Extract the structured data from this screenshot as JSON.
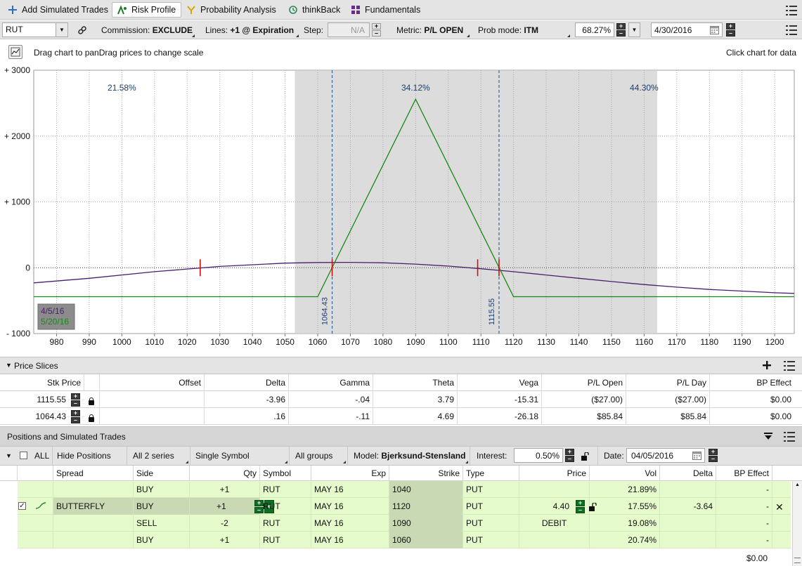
{
  "tabs": [
    {
      "label": "Add Simulated Trades",
      "icon": "plus-icon",
      "active": false
    },
    {
      "label": "Risk Profile",
      "icon": "risk-profile-icon",
      "active": true
    },
    {
      "label": "Probability Analysis",
      "icon": "probability-icon",
      "active": false
    },
    {
      "label": "thinkBack",
      "icon": "history-icon",
      "active": false
    },
    {
      "label": "Fundamentals",
      "icon": "fundamentals-icon",
      "active": false
    }
  ],
  "toolbar": {
    "symbol": "RUT",
    "commission_label": "Commission:",
    "commission_value": "EXCLUDE",
    "lines_label": "Lines:",
    "lines_value": "+1 @ Expiration",
    "step_label": "Step:",
    "step_value": "N/A",
    "metric_label": "Metric:",
    "metric_value": "P/L OPEN",
    "prob_label": "Prob mode:",
    "prob_value": "ITM",
    "percent_value": "68.27%",
    "date_value": "4/30/2016"
  },
  "chart_header": {
    "left_text": "Drag chart to panDrag prices to change scale",
    "right_text": "Click chart for data"
  },
  "chart_data": {
    "type": "line",
    "x_ticks": [
      "980",
      "990",
      "1000",
      "1010",
      "1020",
      "1030",
      "1040",
      "1050",
      "1060",
      "1070",
      "1080",
      "1090",
      "1100",
      "1110",
      "1120",
      "1130",
      "1140",
      "1150",
      "1160",
      "1170",
      "1180",
      "1190",
      "1200"
    ],
    "y_ticks": [
      "+ 3000",
      "+ 2000",
      "+ 1000",
      "0",
      "- 1000"
    ],
    "xlim": [
      973,
      1206
    ],
    "ylim": [
      -1000,
      3000
    ],
    "probabilities": [
      {
        "label": "21.58%",
        "x": 1000
      },
      {
        "label": "34.12%",
        "x": 1090
      },
      {
        "label": "44.30%",
        "x": 1160
      }
    ],
    "shaded_region": [
      1053,
      1164
    ],
    "breakevens": [
      {
        "label": "1064.43",
        "x": 1064.43
      },
      {
        "label": "1115.55",
        "x": 1115.55
      }
    ],
    "series": [
      {
        "name": "4/5/16",
        "color": "#4a1e6e",
        "points": [
          [
            973,
            -230
          ],
          [
            990,
            -160
          ],
          [
            1010,
            -60
          ],
          [
            1030,
            20
          ],
          [
            1050,
            70
          ],
          [
            1060,
            80
          ],
          [
            1070,
            82
          ],
          [
            1080,
            75
          ],
          [
            1090,
            55
          ],
          [
            1100,
            25
          ],
          [
            1110,
            -15
          ],
          [
            1120,
            -60
          ],
          [
            1130,
            -110
          ],
          [
            1140,
            -160
          ],
          [
            1150,
            -210
          ],
          [
            1160,
            -255
          ],
          [
            1170,
            -295
          ],
          [
            1180,
            -330
          ],
          [
            1190,
            -355
          ],
          [
            1200,
            -380
          ],
          [
            1206,
            -390
          ]
        ]
      },
      {
        "name": "5/20/16",
        "color": "#138a13",
        "points": [
          [
            973,
            -440
          ],
          [
            1060,
            -440
          ],
          [
            1090,
            2560
          ],
          [
            1120,
            -440
          ],
          [
            1206,
            -440
          ]
        ]
      }
    ],
    "markers": [
      {
        "x": 1024,
        "y": 0,
        "color": "#d01010"
      },
      {
        "x": 1064.43,
        "y": 0,
        "color": "#d01010"
      },
      {
        "x": 1109,
        "y": 0,
        "color": "#d01010"
      },
      {
        "x": 1115.55,
        "y": 0,
        "color": "#d01010"
      }
    ]
  },
  "price_slices": {
    "title": "Price Slices",
    "columns": [
      "Stk Price",
      "Offset",
      "Delta",
      "Gamma",
      "Theta",
      "Vega",
      "P/L Open",
      "P/L Day",
      "BP Effect"
    ],
    "rows": [
      {
        "price": "1115.55",
        "offset": "",
        "delta": "-3.96",
        "gamma": "-.04",
        "theta": "3.79",
        "vega": "-15.31",
        "pl_open": "($27.00)",
        "pl_day": "($27.00)",
        "bp": "$0.00"
      },
      {
        "price": "1064.43",
        "offset": "",
        "delta": ".16",
        "gamma": "-.11",
        "theta": "4.69",
        "vega": "-26.18",
        "pl_open": "$85.84",
        "pl_day": "$85.84",
        "bp": "$0.00"
      }
    ]
  },
  "positions": {
    "title": "Positions and Simulated Trades",
    "all_label": "ALL",
    "hide_positions": "Hide Positions",
    "series_filter": "All 2 series",
    "symbol_filter": "Single Symbol",
    "groups_filter": "All groups",
    "model_label": "Model:",
    "model_value": "Bjerksund-Stensland",
    "interest_label": "Interest:",
    "interest_value": "0.50%",
    "date_label": "Date:",
    "date_value": "04/05/2016",
    "columns": [
      "Spread",
      "Side",
      "Qty",
      "Symbol",
      "Exp",
      "Strike",
      "Type",
      "Price",
      "Vol",
      "Delta",
      "BP Effect"
    ],
    "rows": [
      {
        "spread": "",
        "side": "BUY",
        "qty": "+1",
        "symbol": "RUT",
        "exp": "MAY 16",
        "strike": "1040",
        "type": "PUT",
        "price": "",
        "vol": "21.89%",
        "delta": "",
        "bp": "-"
      },
      {
        "spread": "BUTTERFLY",
        "side": "BUY",
        "qty": "+1",
        "symbol": "RUT",
        "exp": "MAY 16",
        "strike": "1120",
        "type": "PUT",
        "price": "4.40",
        "vol": "17.55%",
        "delta": "-3.64",
        "bp": "-"
      },
      {
        "spread": "",
        "side": "SELL",
        "qty": "-2",
        "symbol": "RUT",
        "exp": "MAY 16",
        "strike": "1090",
        "type": "PUT",
        "price": "DEBIT",
        "vol": "19.08%",
        "delta": "",
        "bp": "-"
      },
      {
        "spread": "",
        "side": "BUY",
        "qty": "+1",
        "symbol": "RUT",
        "exp": "MAY 16",
        "strike": "1060",
        "type": "PUT",
        "price": "",
        "vol": "20.74%",
        "delta": "",
        "bp": "-"
      }
    ],
    "total_bp": "$0.00"
  }
}
